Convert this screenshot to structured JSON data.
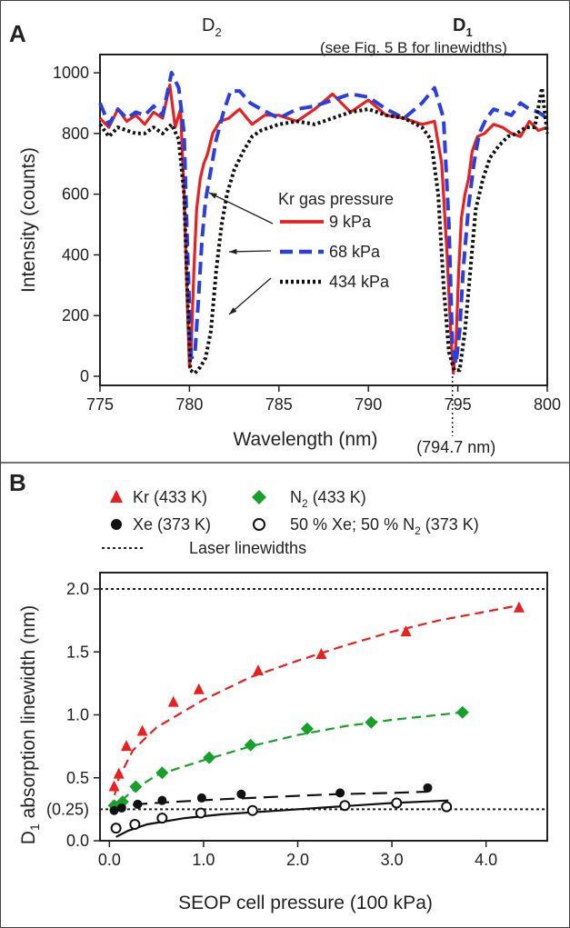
{
  "panels": {
    "a": "A",
    "b": "B"
  },
  "chart_data": [
    {
      "type": "line",
      "panel": "A",
      "xlabel": "Wavelength (nm)",
      "ylabel": "Intensity (counts)",
      "xlim": [
        775,
        800
      ],
      "ylim": [
        -30,
        1060
      ],
      "xticks": [
        775,
        780,
        785,
        790,
        795,
        800
      ],
      "yticks": [
        0,
        200,
        400,
        600,
        800,
        1000
      ],
      "top_labels": {
        "d2": "D",
        "d2_sub": "2",
        "d1": "D",
        "d1_sub": "1",
        "note": "(see Fig. 5 B for linewidths)"
      },
      "marker_label": "(794.7 nm)",
      "marker_x": 794.7,
      "legend_title": "Kr gas pressure",
      "series": [
        {
          "name": "9 kPa",
          "color": "#e8201f",
          "dash": "solid",
          "x": [
            775,
            775.5,
            776,
            776.5,
            777,
            777.5,
            778,
            778.5,
            778.9,
            779.2,
            779.5,
            779.7,
            779.85,
            780.0,
            780.1,
            780.25,
            780.4,
            780.6,
            780.8,
            781.0,
            781.3,
            781.7,
            782.2,
            782.8,
            783.5,
            784.2,
            785,
            786,
            787,
            788,
            789,
            790,
            791,
            792,
            793,
            793.7,
            794.1,
            794.4,
            794.6,
            794.75,
            794.9,
            795.05,
            795.2,
            795.4,
            795.6,
            795.8,
            796.1,
            796.5,
            797,
            797.5,
            798,
            798.5,
            799,
            799.5,
            800
          ],
          "y": [
            850,
            820,
            880,
            840,
            860,
            830,
            870,
            850,
            960,
            820,
            880,
            600,
            300,
            30,
            100,
            350,
            550,
            650,
            700,
            730,
            800,
            840,
            850,
            880,
            830,
            860,
            860,
            840,
            880,
            930,
            870,
            910,
            860,
            850,
            830,
            840,
            700,
            400,
            150,
            10,
            110,
            350,
            520,
            600,
            650,
            740,
            790,
            800,
            830,
            820,
            800,
            790,
            840,
            810,
            820
          ]
        },
        {
          "name": "68 kPa",
          "color": "#2a3fe0",
          "dash": "dashed",
          "x": [
            775,
            775.5,
            776,
            776.5,
            777,
            777.5,
            778,
            778.5,
            779.0,
            779.4,
            779.7,
            779.9,
            780.1,
            780.3,
            780.5,
            780.7,
            780.9,
            781.2,
            781.5,
            781.9,
            782.3,
            782.8,
            783.4,
            784,
            785,
            786,
            787,
            788,
            789,
            790,
            791,
            792,
            793,
            793.7,
            794.2,
            794.5,
            794.7,
            794.9,
            795.1,
            795.3,
            795.6,
            795.9,
            796.2,
            796.6,
            797,
            797.5,
            798,
            798.5,
            799,
            799.5,
            800
          ],
          "y": [
            900,
            830,
            880,
            850,
            870,
            860,
            890,
            860,
            1000,
            950,
            800,
            400,
            60,
            70,
            250,
            450,
            580,
            680,
            780,
            870,
            940,
            940,
            900,
            880,
            850,
            880,
            890,
            910,
            930,
            920,
            880,
            850,
            900,
            950,
            850,
            500,
            100,
            40,
            150,
            350,
            560,
            700,
            800,
            850,
            880,
            870,
            860,
            900,
            880,
            870,
            850
          ]
        },
        {
          "name": "434 kPa",
          "color": "#111111",
          "dash": "dotted",
          "x": [
            775,
            775.5,
            776,
            776.5,
            777,
            777.5,
            778,
            778.5,
            779.0,
            779.4,
            779.7,
            779.9,
            780.05,
            780.3,
            780.6,
            780.9,
            781.2,
            781.5,
            781.8,
            782.1,
            782.5,
            783.0,
            783.5,
            784.0,
            784.5,
            785,
            786,
            787,
            788,
            789,
            790,
            791,
            792,
            793,
            793.5,
            793.9,
            794.2,
            794.5,
            794.8,
            795.1,
            795.4,
            795.7,
            796.0,
            796.4,
            796.8,
            797.3,
            797.8,
            798.3,
            798.8,
            799.3,
            799.7,
            800
          ],
          "y": [
            830,
            790,
            820,
            810,
            800,
            800,
            820,
            800,
            830,
            780,
            600,
            250,
            20,
            10,
            30,
            60,
            150,
            350,
            500,
            600,
            680,
            740,
            790,
            810,
            820,
            830,
            840,
            830,
            850,
            870,
            880,
            860,
            850,
            820,
            780,
            600,
            300,
            80,
            20,
            20,
            150,
            350,
            550,
            650,
            720,
            760,
            790,
            800,
            820,
            820,
            950,
            800
          ]
        }
      ]
    },
    {
      "type": "scatter",
      "panel": "B",
      "xlabel": "SEOP cell pressure (100 kPa)",
      "ylabel": "D",
      "ylabel_sub": "1",
      "ylabel_rest": " absorption linewidth (nm)",
      "xlim": [
        -0.1,
        4.65
      ],
      "ylim": [
        0,
        2.13
      ],
      "xticks": [
        "0.0",
        "1.0",
        "2.0",
        "3.0",
        "4.0"
      ],
      "yticks": [
        "0.0",
        "0.5",
        "1.0",
        "1.5",
        "2.0"
      ],
      "extra_ytick": "(0.25)",
      "hlines": [
        {
          "y": 2.0,
          "label": "Laser linewidths"
        },
        {
          "y": 0.25,
          "label": ""
        }
      ],
      "series": [
        {
          "name": "Kr (433 K)",
          "marker": "triangle",
          "color": "#e8201f",
          "fit_style": "dashed",
          "x": [
            0.05,
            0.1,
            0.18,
            0.35,
            0.68,
            0.95,
            1.58,
            2.25,
            3.15,
            4.35
          ],
          "y": [
            0.43,
            0.53,
            0.75,
            0.87,
            1.1,
            1.2,
            1.35,
            1.48,
            1.66,
            1.85
          ],
          "fit": [
            [
              0.02,
              0.25
            ],
            [
              0.1,
              0.5
            ],
            [
              0.25,
              0.72
            ],
            [
              0.5,
              0.9
            ],
            [
              1.0,
              1.12
            ],
            [
              1.5,
              1.3
            ],
            [
              2.0,
              1.43
            ],
            [
              2.5,
              1.55
            ],
            [
              3.0,
              1.66
            ],
            [
              3.5,
              1.75
            ],
            [
              4.0,
              1.82
            ],
            [
              4.35,
              1.87
            ]
          ]
        },
        {
          "name": "N",
          "name_sub": "2",
          "name_rest": " (433 K)",
          "marker": "diamond",
          "color": "#17a12a",
          "fit_style": "dashed",
          "x": [
            0.05,
            0.14,
            0.28,
            0.56,
            1.06,
            1.5,
            2.1,
            2.78,
            3.75
          ],
          "y": [
            0.28,
            0.31,
            0.43,
            0.54,
            0.66,
            0.76,
            0.89,
            0.94,
            1.02
          ],
          "fit": [
            [
              0.02,
              0.24
            ],
            [
              0.1,
              0.3
            ],
            [
              0.25,
              0.4
            ],
            [
              0.5,
              0.52
            ],
            [
              1.0,
              0.64
            ],
            [
              1.5,
              0.75
            ],
            [
              2.0,
              0.84
            ],
            [
              2.5,
              0.91
            ],
            [
              3.0,
              0.96
            ],
            [
              3.5,
              1.0
            ],
            [
              3.75,
              1.02
            ]
          ]
        },
        {
          "name": "Xe (373 K)",
          "marker": "filled-circle",
          "color": "#111111",
          "fit_style": "long-dashed",
          "x": [
            0.05,
            0.13,
            0.3,
            0.56,
            0.98,
            1.4,
            2.45,
            3.38
          ],
          "y": [
            0.24,
            0.26,
            0.29,
            0.32,
            0.34,
            0.37,
            0.38,
            0.42
          ],
          "fit": [
            [
              0.02,
              0.26
            ],
            [
              0.3,
              0.29
            ],
            [
              0.7,
              0.31
            ],
            [
              1.2,
              0.33
            ],
            [
              1.8,
              0.35
            ],
            [
              2.4,
              0.37
            ],
            [
              3.0,
              0.38
            ],
            [
              3.38,
              0.39
            ]
          ]
        },
        {
          "name": "50 % Xe; 50 % N",
          "name_sub": "2",
          "name_rest": " (373 K)",
          "marker": "open-circle",
          "color": "#111111",
          "fit_style": "solid",
          "x": [
            0.07,
            0.27,
            0.56,
            0.97,
            1.52,
            2.5,
            3.05,
            3.58
          ],
          "y": [
            0.1,
            0.13,
            0.18,
            0.22,
            0.24,
            0.28,
            0.3,
            0.27
          ],
          "fit": [
            [
              0.07,
              0.03
            ],
            [
              0.2,
              0.08
            ],
            [
              0.4,
              0.13
            ],
            [
              0.8,
              0.18
            ],
            [
              1.2,
              0.21
            ],
            [
              1.8,
              0.24
            ],
            [
              2.4,
              0.27
            ],
            [
              3.0,
              0.3
            ],
            [
              3.6,
              0.32
            ]
          ]
        }
      ],
      "legend_extra": "Laser linewidths"
    }
  ]
}
